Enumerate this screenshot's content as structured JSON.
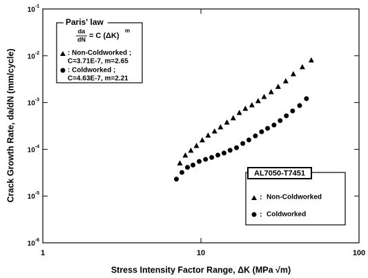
{
  "chart_data": {
    "type": "scatter",
    "x_label": "Stress Intensity Factor Range, ΔK (MPa √m)",
    "y_label": "Crack Growth Rate, da/dN (mm/cycle)",
    "log_x": true,
    "log_y": true,
    "xlim": [
      1,
      100
    ],
    "ylim": [
      1e-06,
      0.1
    ],
    "xticks": [
      1,
      10,
      100
    ],
    "yticks": [
      {
        "value": 0.1,
        "label": "10",
        "exponent": "-1"
      },
      {
        "value": 0.01,
        "label": "10",
        "exponent": "-2"
      },
      {
        "value": 0.001,
        "label": "10",
        "exponent": "-3"
      },
      {
        "value": 0.0001,
        "label": "10",
        "exponent": "-4"
      },
      {
        "value": 1e-05,
        "label": "10",
        "exponent": "-5"
      },
      {
        "value": 1e-06,
        "label": "10",
        "exponent": "-6"
      }
    ],
    "series": [
      {
        "name": "Non-Coldworked",
        "marker": "triangle",
        "color": "#000000",
        "x": [
          7.36,
          7.97,
          8.64,
          9.37,
          10.2,
          11.1,
          12.2,
          13.3,
          14.6,
          16.0,
          17.5,
          19.1,
          21.0,
          23.0,
          25.1,
          27.8,
          30.8,
          34.4,
          38.4,
          43.8,
          49.9
        ],
        "values": [
          5.1e-05,
          7.5e-05,
          9.5e-05,
          0.00012,
          0.000158,
          0.0002,
          0.000245,
          0.0003,
          0.00038,
          0.00047,
          0.00061,
          0.00075,
          0.00089,
          0.00109,
          0.00134,
          0.0017,
          0.0022,
          0.0029,
          0.0041,
          0.0058,
          0.0081
        ]
      },
      {
        "name": "Coldworked",
        "marker": "circle",
        "color": "#000000",
        "x": [
          7.0,
          7.58,
          8.22,
          8.91,
          9.75,
          10.7,
          11.7,
          12.8,
          14.0,
          15.3,
          16.8,
          18.4,
          20.1,
          22.1,
          24.2,
          26.4,
          29.0,
          31.7,
          34.7,
          38.0,
          42.1,
          46.5
        ],
        "values": [
          2.3e-05,
          3.2e-05,
          4.1e-05,
          4.6e-05,
          5.5e-05,
          6.1e-05,
          6.7e-05,
          7.5e-05,
          8.3e-05,
          9.5e-05,
          0.000108,
          0.000133,
          0.000158,
          0.000193,
          0.000237,
          0.00028,
          0.00033,
          0.00041,
          0.00052,
          0.00066,
          0.00086,
          0.00121
        ]
      }
    ],
    "legend": {
      "title": "AL7050-T7451",
      "separator": ":"
    },
    "paris_law": {
      "title": "Paris' law",
      "formula": {
        "numerator": "da",
        "denominator": "dN",
        "rhs": "= C (ΔK)",
        "exponent": "m"
      },
      "entries": [
        {
          "label": ": Non-Coldworked ;",
          "params": "C=3.71E-7, m=2.65"
        },
        {
          "label": ": Coldworked ;",
          "params": "C=4.63E-7, m=2.21"
        }
      ]
    }
  }
}
